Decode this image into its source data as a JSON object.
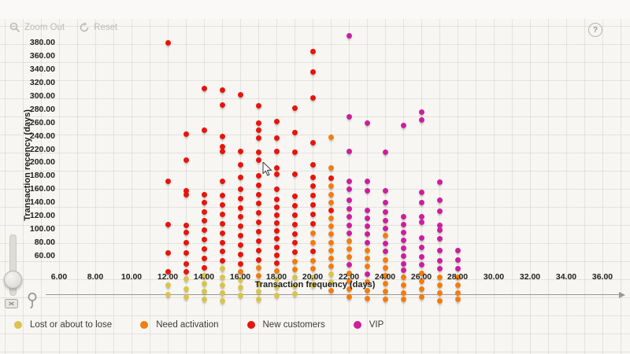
{
  "toolbar": {
    "zoom_out_label": "Zoom Out",
    "reset_label": "Reset"
  },
  "help": {
    "glyph": "?"
  },
  "chart_data": {
    "type": "scatter",
    "xlabel": "Transaction frequency (days)",
    "ylabel": "Transaction recency (days)",
    "xlim": [
      4.6,
      37.2
    ],
    "ylim": [
      60,
      380
    ],
    "grid": "background graph-paper, not tick-aligned",
    "legend_position": "bottom",
    "x_ticks": [
      {
        "v": 6,
        "label": "6.00"
      },
      {
        "v": 8,
        "label": "8.00"
      },
      {
        "v": 10,
        "label": "10.00"
      },
      {
        "v": 12,
        "label": "12.00"
      },
      {
        "v": 14,
        "label": "14.00"
      },
      {
        "v": 16,
        "label": "16.00"
      },
      {
        "v": 18,
        "label": "18.00"
      },
      {
        "v": 20,
        "label": "20.00"
      },
      {
        "v": 22,
        "label": "22.00"
      },
      {
        "v": 24,
        "label": "24.00"
      },
      {
        "v": 26,
        "label": "26.00"
      },
      {
        "v": 28,
        "label": "28.00"
      },
      {
        "v": 30,
        "label": "30.00"
      },
      {
        "v": 32,
        "label": "32.00"
      },
      {
        "v": 34,
        "label": "34.00"
      },
      {
        "v": 36,
        "label": "36.00"
      }
    ],
    "y_ticks": [
      {
        "v": 380,
        "label": "380.00"
      },
      {
        "v": 360,
        "label": "360.00"
      },
      {
        "v": 340,
        "label": "340.00"
      },
      {
        "v": 320,
        "label": "320.00"
      },
      {
        "v": 300,
        "label": "300.00"
      },
      {
        "v": 280,
        "label": "280.00"
      },
      {
        "v": 260,
        "label": "260.00"
      },
      {
        "v": 240,
        "label": "240.00"
      },
      {
        "v": 220,
        "label": "220.00"
      },
      {
        "v": 200,
        "label": "200.00"
      },
      {
        "v": 180,
        "label": "180.00"
      },
      {
        "v": 160,
        "label": "160.00"
      },
      {
        "v": 140,
        "label": "140.00"
      },
      {
        "v": 120,
        "label": "120.00"
      },
      {
        "v": 100,
        "label": "100.00"
      },
      {
        "v": 80,
        "label": "80.00"
      },
      {
        "v": 60,
        "label": "60.00"
      }
    ],
    "series": [
      {
        "name": "Lost or about to lose",
        "color": "#d8c44e",
        "points": [
          [
            12,
            16
          ],
          [
            12,
            2
          ],
          [
            13,
            25
          ],
          [
            13,
            10
          ],
          [
            13,
            -2
          ],
          [
            14,
            30
          ],
          [
            14,
            18
          ],
          [
            14,
            6
          ],
          [
            14,
            -6
          ],
          [
            15,
            40
          ],
          [
            15,
            28
          ],
          [
            15,
            16
          ],
          [
            15,
            4
          ],
          [
            15,
            -8
          ],
          [
            16,
            24
          ],
          [
            16,
            12
          ],
          [
            16,
            0
          ],
          [
            17,
            18
          ],
          [
            17,
            6
          ],
          [
            17,
            -6
          ],
          [
            18,
            25
          ],
          [
            18,
            13
          ],
          [
            18,
            1
          ],
          [
            19,
            27
          ],
          [
            19,
            15
          ],
          [
            19,
            3
          ],
          [
            20,
            28
          ],
          [
            20,
            16
          ],
          [
            21,
            32
          ],
          [
            21,
            20
          ]
        ]
      },
      {
        "name": "Need activation",
        "color": "#f07d12",
        "points": [
          [
            16,
            36
          ],
          [
            17,
            42
          ],
          [
            17,
            30
          ],
          [
            18,
            37
          ],
          [
            19,
            51
          ],
          [
            19,
            39
          ],
          [
            20,
            94
          ],
          [
            20,
            80
          ],
          [
            20,
            52
          ],
          [
            20,
            40
          ],
          [
            21,
            238
          ],
          [
            21,
            192
          ],
          [
            21,
            164
          ],
          [
            21,
            152
          ],
          [
            21,
            140
          ],
          [
            21,
            116
          ],
          [
            21,
            104
          ],
          [
            21,
            92
          ],
          [
            21,
            80
          ],
          [
            21,
            68
          ],
          [
            21,
            56
          ],
          [
            21,
            44
          ],
          [
            21,
            8
          ],
          [
            22,
            82
          ],
          [
            22,
            70
          ],
          [
            22,
            58
          ],
          [
            22,
            34
          ],
          [
            22,
            22
          ],
          [
            22,
            10
          ],
          [
            22,
            -2
          ],
          [
            23,
            68
          ],
          [
            23,
            56
          ],
          [
            23,
            44
          ],
          [
            23,
            20
          ],
          [
            23,
            8
          ],
          [
            23,
            -4
          ],
          [
            24,
            90
          ],
          [
            24,
            54
          ],
          [
            24,
            42
          ],
          [
            24,
            30
          ],
          [
            24,
            18
          ],
          [
            24,
            6
          ],
          [
            24,
            -6
          ],
          [
            25,
            28
          ],
          [
            25,
            16
          ],
          [
            25,
            4
          ],
          [
            25,
            -6
          ],
          [
            26,
            34
          ],
          [
            26,
            22
          ],
          [
            26,
            10
          ],
          [
            26,
            -2
          ],
          [
            27,
            28
          ],
          [
            27,
            16
          ],
          [
            27,
            4
          ],
          [
            27,
            -8
          ],
          [
            28,
            28
          ],
          [
            28,
            16
          ],
          [
            28,
            4
          ],
          [
            28,
            -6
          ]
        ]
      },
      {
        "name": "New customers",
        "color": "#e8140c",
        "points": [
          [
            12,
            380
          ],
          [
            12,
            172
          ],
          [
            12,
            107
          ],
          [
            12,
            64
          ],
          [
            12,
            36
          ],
          [
            13,
            243
          ],
          [
            13,
            204
          ],
          [
            13,
            157
          ],
          [
            13,
            151
          ],
          [
            13,
            105
          ],
          [
            13,
            95
          ],
          [
            13,
            80
          ],
          [
            13,
            64
          ],
          [
            13,
            48
          ],
          [
            13,
            36
          ],
          [
            14,
            311
          ],
          [
            14,
            248
          ],
          [
            14,
            152
          ],
          [
            14,
            140
          ],
          [
            14,
            126
          ],
          [
            14,
            112
          ],
          [
            14,
            98
          ],
          [
            14,
            84
          ],
          [
            14,
            70
          ],
          [
            14,
            56
          ],
          [
            14,
            42
          ],
          [
            15,
            309
          ],
          [
            15,
            286
          ],
          [
            15,
            239
          ],
          [
            15,
            224
          ],
          [
            15,
            216
          ],
          [
            15,
            172
          ],
          [
            15,
            150
          ],
          [
            15,
            136
          ],
          [
            15,
            122
          ],
          [
            15,
            108
          ],
          [
            15,
            94
          ],
          [
            15,
            80
          ],
          [
            15,
            66
          ],
          [
            15,
            52
          ],
          [
            16,
            302
          ],
          [
            16,
            216
          ],
          [
            16,
            196
          ],
          [
            16,
            178
          ],
          [
            16,
            160
          ],
          [
            16,
            146
          ],
          [
            16,
            132
          ],
          [
            16,
            118
          ],
          [
            16,
            104
          ],
          [
            16,
            90
          ],
          [
            16,
            76
          ],
          [
            16,
            62
          ],
          [
            16,
            48
          ],
          [
            17,
            285
          ],
          [
            17,
            259
          ],
          [
            17,
            248
          ],
          [
            17,
            237
          ],
          [
            17,
            215
          ],
          [
            17,
            204
          ],
          [
            17,
            180
          ],
          [
            17,
            166
          ],
          [
            17,
            152
          ],
          [
            17,
            138
          ],
          [
            17,
            124
          ],
          [
            17,
            110
          ],
          [
            17,
            96
          ],
          [
            17,
            82
          ],
          [
            17,
            68
          ],
          [
            17,
            54
          ],
          [
            18,
            261
          ],
          [
            18,
            237
          ],
          [
            18,
            217
          ],
          [
            18,
            192
          ],
          [
            18,
            182
          ],
          [
            18,
            160
          ],
          [
            18,
            145
          ],
          [
            18,
            133
          ],
          [
            18,
            121
          ],
          [
            18,
            109
          ],
          [
            18,
            97
          ],
          [
            18,
            85
          ],
          [
            18,
            73
          ],
          [
            18,
            61
          ],
          [
            18,
            49
          ],
          [
            19,
            281
          ],
          [
            19,
            245
          ],
          [
            19,
            215
          ],
          [
            19,
            182
          ],
          [
            19,
            149
          ],
          [
            19,
            135
          ],
          [
            19,
            121
          ],
          [
            19,
            107
          ],
          [
            19,
            93
          ],
          [
            19,
            79
          ],
          [
            19,
            65
          ],
          [
            20,
            366
          ],
          [
            20,
            336
          ],
          [
            20,
            297
          ],
          [
            20,
            229
          ],
          [
            20,
            196
          ],
          [
            20,
            178
          ],
          [
            20,
            164
          ],
          [
            20,
            150
          ],
          [
            20,
            136
          ],
          [
            20,
            122
          ],
          [
            20,
            108
          ],
          [
            20,
            66
          ],
          [
            21,
            176
          ],
          [
            21,
            128
          ]
        ]
      },
      {
        "name": "VIP",
        "color": "#cb1f9c",
        "points": [
          [
            22,
            390
          ],
          [
            22,
            268
          ],
          [
            22,
            216
          ],
          [
            22,
            172
          ],
          [
            22,
            160
          ],
          [
            22,
            143
          ],
          [
            22,
            130
          ],
          [
            22,
            118
          ],
          [
            22,
            106
          ],
          [
            22,
            94
          ],
          [
            22,
            46
          ],
          [
            23,
            259
          ],
          [
            23,
            172
          ],
          [
            23,
            158
          ],
          [
            23,
            128
          ],
          [
            23,
            116
          ],
          [
            23,
            104
          ],
          [
            23,
            92
          ],
          [
            23,
            80
          ],
          [
            23,
            32
          ],
          [
            24,
            215
          ],
          [
            24,
            157
          ],
          [
            24,
            140
          ],
          [
            24,
            125
          ],
          [
            24,
            113
          ],
          [
            24,
            101
          ],
          [
            24,
            78
          ],
          [
            24,
            66
          ],
          [
            25,
            255
          ],
          [
            25,
            119
          ],
          [
            25,
            107
          ],
          [
            25,
            95
          ],
          [
            25,
            83
          ],
          [
            25,
            71
          ],
          [
            25,
            60
          ],
          [
            25,
            48
          ],
          [
            25,
            38
          ],
          [
            26,
            276
          ],
          [
            26,
            264
          ],
          [
            26,
            155
          ],
          [
            26,
            140
          ],
          [
            26,
            119
          ],
          [
            26,
            110
          ],
          [
            26,
            87
          ],
          [
            26,
            72
          ],
          [
            26,
            58
          ],
          [
            26,
            46
          ],
          [
            27,
            171
          ],
          [
            27,
            143
          ],
          [
            27,
            127
          ],
          [
            27,
            106
          ],
          [
            27,
            98
          ],
          [
            27,
            85
          ],
          [
            27,
            68
          ],
          [
            27,
            52
          ],
          [
            27,
            40
          ],
          [
            28,
            68
          ],
          [
            28,
            54
          ],
          [
            28,
            40
          ]
        ]
      }
    ]
  }
}
